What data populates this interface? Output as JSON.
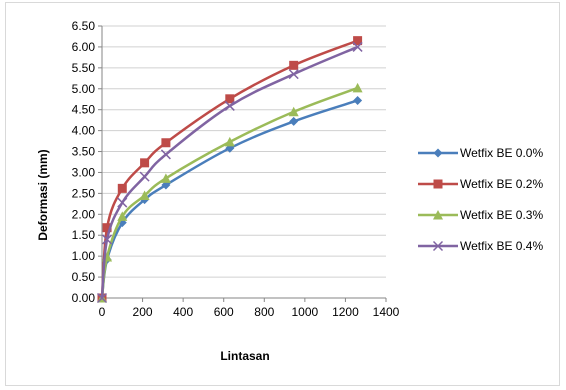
{
  "chart_data": {
    "type": "line",
    "xlabel": "Lintasan",
    "ylabel": "Deformasi (mm)",
    "xlim": [
      0,
      1400
    ],
    "ylim": [
      0,
      6.5
    ],
    "x_ticks": [
      "0",
      "200",
      "400",
      "600",
      "800",
      "1000",
      "1200",
      "1400"
    ],
    "y_ticks": [
      "0.00",
      "0.50",
      "1.00",
      "1.50",
      "2.00",
      "2.50",
      "3.00",
      "3.50",
      "4.00",
      "4.50",
      "5.00",
      "5.50",
      "6.00",
      "6.50"
    ],
    "grid": "horizontal",
    "legend_position": "right",
    "x": [
      0,
      25,
      100,
      210,
      315,
      630,
      945,
      1260
    ],
    "series": [
      {
        "name": "Wetfix BE 0.0%",
        "color": "#4a7ebb",
        "marker": "diamond",
        "values": [
          0,
          0.92,
          1.8,
          2.35,
          2.7,
          3.58,
          4.22,
          4.72
        ]
      },
      {
        "name": "Wetfix BE 0.2%",
        "color": "#be4b48",
        "marker": "square",
        "values": [
          0,
          1.68,
          2.62,
          3.23,
          3.71,
          4.76,
          5.56,
          6.15
        ]
      },
      {
        "name": "Wetfix BE 0.3%",
        "color": "#9bbb59",
        "marker": "triangle",
        "values": [
          0,
          0.98,
          1.95,
          2.45,
          2.86,
          3.73,
          4.45,
          5.02
        ]
      },
      {
        "name": "Wetfix BE 0.4%",
        "color": "#8064a2",
        "marker": "x",
        "values": [
          0,
          1.4,
          2.28,
          2.9,
          3.43,
          4.59,
          5.35,
          6.0
        ]
      }
    ]
  }
}
